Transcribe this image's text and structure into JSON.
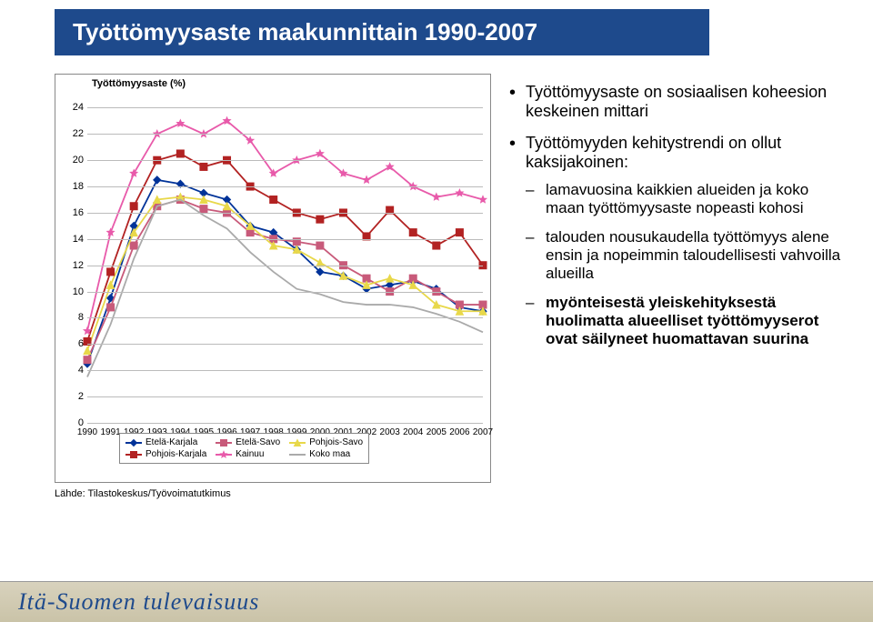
{
  "title": "Työttömyysaste maakunnittain 1990-2007",
  "chart": {
    "type": "line",
    "y_title": "Työttömyysaste (%)",
    "x_ticks": [
      "1990",
      "1991",
      "1992",
      "1993",
      "1994",
      "1995",
      "1996",
      "1997",
      "1998",
      "1999",
      "2000",
      "2001",
      "2002",
      "2003",
      "2004",
      "2005",
      "2006",
      "2007"
    ],
    "ylim": [
      0,
      25
    ],
    "y_ticks": [
      0,
      2,
      4,
      6,
      8,
      10,
      12,
      14,
      16,
      18,
      20,
      22,
      24
    ],
    "grid_color": "#bbbbbb",
    "background": "#ffffff",
    "series": [
      {
        "name": "Etelä-Karjala",
        "color": "#003399",
        "marker": "diamond",
        "values": [
          4.5,
          9.5,
          15.0,
          18.5,
          18.2,
          17.5,
          17.0,
          15.0,
          14.5,
          13.2,
          11.5,
          11.2,
          10.2,
          10.5,
          10.8,
          10.2,
          8.8,
          8.5
        ]
      },
      {
        "name": "Etelä-Savo",
        "color": "#c85a7a",
        "marker": "square",
        "values": [
          4.8,
          8.8,
          13.5,
          16.5,
          17.0,
          16.3,
          16.0,
          14.5,
          14.0,
          13.8,
          13.5,
          12.0,
          11.0,
          10.0,
          11.0,
          10.0,
          9.0,
          9.0
        ]
      },
      {
        "name": "Pohjois-Savo",
        "color": "#e8d84a",
        "marker": "triangle",
        "values": [
          5.5,
          10.5,
          14.5,
          17.0,
          17.2,
          17.0,
          16.5,
          15.0,
          13.5,
          13.2,
          12.2,
          11.2,
          10.5,
          11.0,
          10.5,
          9.0,
          8.5,
          8.5
        ]
      },
      {
        "name": "Pohjois-Karjala",
        "color": "#b22222",
        "marker": "square",
        "values": [
          6.2,
          11.5,
          16.5,
          20.0,
          20.5,
          19.5,
          20.0,
          18.0,
          17.0,
          16.0,
          15.5,
          16.0,
          14.2,
          16.2,
          14.5,
          13.5,
          14.5,
          12.0
        ]
      },
      {
        "name": "Kainuu",
        "color": "#e85aaa",
        "marker": "star",
        "values": [
          7.0,
          14.5,
          19.0,
          22.0,
          22.8,
          22.0,
          23.0,
          21.5,
          19.0,
          20.0,
          20.5,
          19.0,
          18.5,
          19.5,
          18.0,
          17.2,
          17.5,
          17.0
        ]
      },
      {
        "name": "Koko maa",
        "color": "#aaaaaa",
        "marker": "none",
        "values": [
          3.5,
          7.5,
          12.5,
          16.5,
          17.0,
          15.8,
          14.8,
          13.0,
          11.5,
          10.2,
          9.8,
          9.2,
          9.0,
          9.0,
          8.8,
          8.3,
          7.7,
          6.9
        ]
      }
    ],
    "legend_cols": 3,
    "line_width": 1.8,
    "marker_size": 4,
    "tick_fontsize": 10,
    "ytitle_fontsize": 11
  },
  "source": "Lähde: Tilastokeskus/Työvoimatutkimus",
  "bullets": [
    {
      "text": "Työttömyysaste on sosiaalisen koheesion keskeinen mittari"
    },
    {
      "text": "Työttömyyden kehitystrendi on ollut kaksijakoinen:",
      "sub": [
        "lamavuosina kaikkien alueiden ja koko maan työttömyysaste nopeasti kohosi",
        "talouden nousukaudella työttömyys alene ensin ja nopeimmin taloudellisesti vahvoilla alueilla",
        "<b>myönteisestä yleiskehityksestä huolimatta alueelliset työttömyyserot ovat säilyneet huomattavan suurina</b>"
      ]
    }
  ],
  "footer": "Itä-Suomen tulevaisuus"
}
